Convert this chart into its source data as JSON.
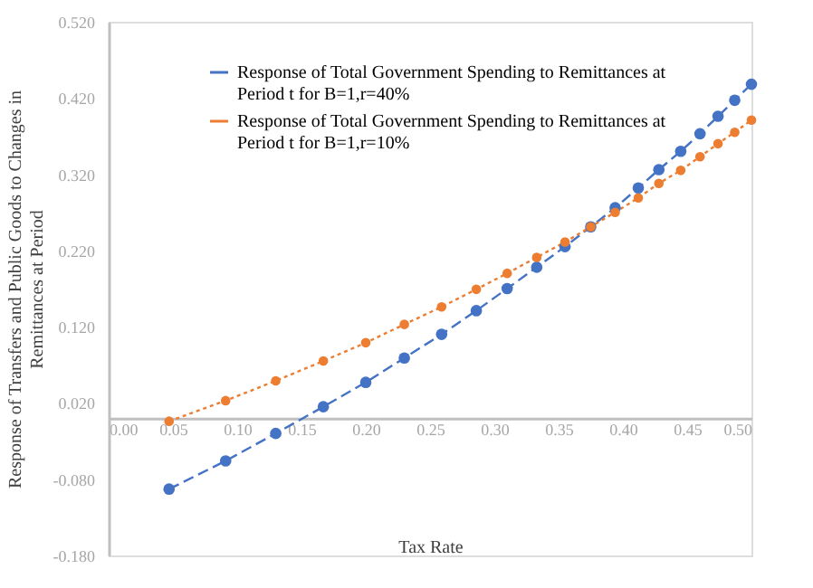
{
  "chart_data": {
    "type": "line",
    "xlabel": "Tax Rate",
    "ylabel": "Response of Transfers and Public Goods to Changes in Remittances at Period",
    "xlim": [
      0,
      0.5
    ],
    "xticks": [
      {
        "value": 0,
        "label": "0.00"
      },
      {
        "value": 0.05,
        "label": "0.05"
      },
      {
        "value": 0.1,
        "label": "0.10"
      },
      {
        "value": 0.15,
        "label": "0.15"
      },
      {
        "value": 0.2,
        "label": "0.20"
      },
      {
        "value": 0.25,
        "label": "0.25"
      },
      {
        "value": 0.3,
        "label": "0.30"
      },
      {
        "value": 0.35,
        "label": "0.35"
      },
      {
        "value": 0.4,
        "label": "0.40"
      },
      {
        "value": 0.45,
        "label": "0.45"
      },
      {
        "value": 0.5,
        "label": "0.50"
      }
    ],
    "ylim": [
      -0.18,
      0.52
    ],
    "yticks": [
      {
        "value": -0.18,
        "label": "-0.180"
      },
      {
        "value": -0.08,
        "label": "-0.080"
      },
      {
        "value": 0.02,
        "label": "0.020"
      },
      {
        "value": 0.12,
        "label": "0.120"
      },
      {
        "value": 0.22,
        "label": "0.220"
      },
      {
        "value": 0.32,
        "label": "0.320"
      },
      {
        "value": 0.42,
        "label": "0.420"
      },
      {
        "value": 0.52,
        "label": "0.520"
      }
    ],
    "grid": false,
    "legend": "top",
    "marker": "circle",
    "x": [
      0.047,
      0.091,
      0.13,
      0.167,
      0.2,
      0.23,
      0.259,
      0.286,
      0.31,
      0.333,
      0.355,
      0.375,
      0.394,
      0.412,
      0.428,
      0.445,
      0.46,
      0.474,
      0.487,
      0.5
    ],
    "series": [
      {
        "name": "Response of Total Government Spending to Remittances at Period t for B=1,r=40%",
        "color": "#4472c4",
        "line_style": "dashed",
        "values": [
          -0.093,
          -0.056,
          -0.02,
          0.015,
          0.047,
          0.079,
          0.11,
          0.141,
          0.17,
          0.198,
          0.225,
          0.251,
          0.276,
          0.302,
          0.326,
          0.35,
          0.373,
          0.396,
          0.417,
          0.438
        ]
      },
      {
        "name": "Response of Total Government Spending to Remittances at Period t for B=1,r=10%",
        "color": "#ed7d31",
        "line_style": "dotted",
        "values": [
          -0.004,
          0.023,
          0.049,
          0.075,
          0.099,
          0.123,
          0.146,
          0.169,
          0.19,
          0.211,
          0.231,
          0.251,
          0.27,
          0.289,
          0.308,
          0.325,
          0.343,
          0.36,
          0.375,
          0.391
        ]
      }
    ]
  }
}
